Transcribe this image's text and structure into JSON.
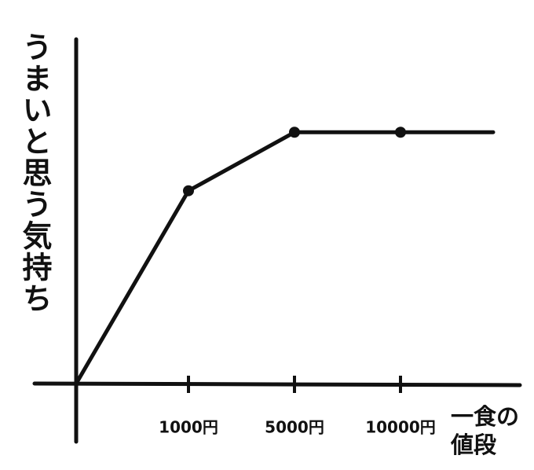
{
  "chart_data": {
    "type": "line",
    "y_label": "うまいと思う気持ち",
    "x_label": "一食の値段",
    "categories": [
      null,
      "1000円",
      "5000円",
      "10000円",
      null
    ],
    "values": [
      0,
      56,
      73,
      73,
      73
    ],
    "color": "#111111",
    "ylim": [
      0,
      100
    ]
  }
}
